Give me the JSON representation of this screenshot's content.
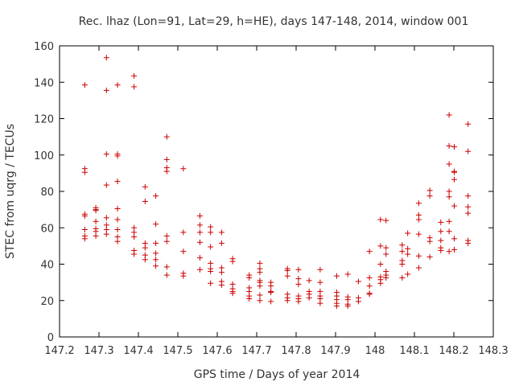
{
  "chart_data": {
    "type": "scatter",
    "title": "Rec. lhaz (Lon=91, Lat=29, h=HE), days 147-148, 2014, window 001",
    "xlabel": "GPS time / Days of year 2014",
    "ylabel": "STEC from uqrg / TECUs",
    "xlim": [
      147.2,
      148.3
    ],
    "ylim": [
      0,
      160
    ],
    "xticks": [
      147.2,
      147.3,
      147.4,
      147.5,
      147.6,
      147.7,
      147.8,
      147.9,
      148.0,
      148.1,
      148.2,
      148.3
    ],
    "xtick_labels": [
      "147.2",
      "147.3",
      "147.4",
      "147.5",
      "147.6",
      "147.7",
      "147.8",
      "147.9",
      "148",
      "148.1",
      "148.2",
      "148.3"
    ],
    "yticks": [
      0,
      20,
      40,
      60,
      80,
      100,
      120,
      140,
      160
    ],
    "ytick_labels": [
      "0",
      "20",
      "40",
      "60",
      "80",
      "100",
      "120",
      "140",
      "160"
    ],
    "grid": false,
    "legend": "none",
    "marker": "+",
    "color": "#cc0000",
    "points": [
      [
        147.264,
        138.5
      ],
      [
        147.264,
        92.5
      ],
      [
        147.264,
        90.5
      ],
      [
        147.264,
        67.5
      ],
      [
        147.264,
        66.5
      ],
      [
        147.264,
        59
      ],
      [
        147.264,
        55.5
      ],
      [
        147.264,
        54
      ],
      [
        147.292,
        71
      ],
      [
        147.292,
        70
      ],
      [
        147.292,
        69.5
      ],
      [
        147.292,
        63.5
      ],
      [
        147.292,
        59.5
      ],
      [
        147.292,
        58
      ],
      [
        147.292,
        55.5
      ],
      [
        147.319,
        153.5
      ],
      [
        147.319,
        135.5
      ],
      [
        147.319,
        100.5
      ],
      [
        147.319,
        83.5
      ],
      [
        147.319,
        65.5
      ],
      [
        147.319,
        61.5
      ],
      [
        147.319,
        59
      ],
      [
        147.319,
        56.5
      ],
      [
        147.347,
        138.5
      ],
      [
        147.347,
        100.5
      ],
      [
        147.347,
        99.5
      ],
      [
        147.347,
        85.5
      ],
      [
        147.347,
        70.5
      ],
      [
        147.347,
        64.5
      ],
      [
        147.347,
        59
      ],
      [
        147.347,
        55
      ],
      [
        147.347,
        52.5
      ],
      [
        147.389,
        143.5
      ],
      [
        147.389,
        137.5
      ],
      [
        147.389,
        60
      ],
      [
        147.389,
        57.5
      ],
      [
        147.389,
        55
      ],
      [
        147.389,
        47.5
      ],
      [
        147.389,
        45.5
      ],
      [
        147.417,
        82.5
      ],
      [
        147.417,
        74.5
      ],
      [
        147.417,
        51.5
      ],
      [
        147.417,
        49
      ],
      [
        147.417,
        45
      ],
      [
        147.417,
        42.5
      ],
      [
        147.444,
        77.5
      ],
      [
        147.444,
        62
      ],
      [
        147.444,
        51.5
      ],
      [
        147.444,
        46
      ],
      [
        147.444,
        42.5
      ],
      [
        147.444,
        39
      ],
      [
        147.472,
        110
      ],
      [
        147.472,
        97.5
      ],
      [
        147.472,
        93
      ],
      [
        147.472,
        91
      ],
      [
        147.472,
        55.5
      ],
      [
        147.472,
        52.5
      ],
      [
        147.472,
        38.5
      ],
      [
        147.472,
        34
      ],
      [
        147.514,
        92.5
      ],
      [
        147.514,
        57.5
      ],
      [
        147.514,
        47
      ],
      [
        147.514,
        35
      ],
      [
        147.514,
        33.5
      ],
      [
        147.556,
        66.5
      ],
      [
        147.556,
        61.5
      ],
      [
        147.556,
        57.5
      ],
      [
        147.556,
        52
      ],
      [
        147.556,
        43.5
      ],
      [
        147.556,
        37
      ],
      [
        147.583,
        60.5
      ],
      [
        147.583,
        57.5
      ],
      [
        147.583,
        49.5
      ],
      [
        147.583,
        40.5
      ],
      [
        147.583,
        37.5
      ],
      [
        147.583,
        36
      ],
      [
        147.583,
        29.5
      ],
      [
        147.611,
        57.5
      ],
      [
        147.611,
        51.5
      ],
      [
        147.611,
        38
      ],
      [
        147.611,
        35.5
      ],
      [
        147.611,
        30.5
      ],
      [
        147.611,
        28.5
      ],
      [
        147.639,
        43
      ],
      [
        147.639,
        41.5
      ],
      [
        147.639,
        29
      ],
      [
        147.639,
        26.5
      ],
      [
        147.639,
        25
      ],
      [
        147.639,
        24
      ],
      [
        147.681,
        34
      ],
      [
        147.681,
        32.5
      ],
      [
        147.681,
        27
      ],
      [
        147.681,
        25
      ],
      [
        147.681,
        22.5
      ],
      [
        147.681,
        21
      ],
      [
        147.708,
        40.5
      ],
      [
        147.708,
        37.5
      ],
      [
        147.708,
        35.5
      ],
      [
        147.708,
        31
      ],
      [
        147.708,
        30
      ],
      [
        147.708,
        28
      ],
      [
        147.708,
        23
      ],
      [
        147.708,
        20
      ],
      [
        147.736,
        30
      ],
      [
        147.736,
        28
      ],
      [
        147.736,
        25
      ],
      [
        147.736,
        24.5
      ],
      [
        147.736,
        19.5
      ],
      [
        147.778,
        37.5
      ],
      [
        147.778,
        36.5
      ],
      [
        147.778,
        33.5
      ],
      [
        147.778,
        23.5
      ],
      [
        147.778,
        21.5
      ],
      [
        147.778,
        20
      ],
      [
        147.806,
        37
      ],
      [
        147.806,
        32
      ],
      [
        147.806,
        29
      ],
      [
        147.806,
        22.5
      ],
      [
        147.806,
        21
      ],
      [
        147.806,
        19.5
      ],
      [
        147.833,
        31
      ],
      [
        147.833,
        25
      ],
      [
        147.833,
        23.5
      ],
      [
        147.833,
        21.5
      ],
      [
        147.861,
        37
      ],
      [
        147.861,
        30
      ],
      [
        147.861,
        25
      ],
      [
        147.861,
        22.5
      ],
      [
        147.861,
        21
      ],
      [
        147.861,
        18.5
      ],
      [
        147.903,
        33.5
      ],
      [
        147.903,
        24.5
      ],
      [
        147.903,
        22.5
      ],
      [
        147.903,
        20.5
      ],
      [
        147.903,
        18.5
      ],
      [
        147.903,
        17
      ],
      [
        147.931,
        34.5
      ],
      [
        147.931,
        22
      ],
      [
        147.931,
        20.5
      ],
      [
        147.931,
        18
      ],
      [
        147.931,
        17
      ],
      [
        147.958,
        30.5
      ],
      [
        147.958,
        21.5
      ],
      [
        147.958,
        19.5
      ],
      [
        147.986,
        47
      ],
      [
        147.986,
        32.5
      ],
      [
        147.986,
        28
      ],
      [
        147.986,
        24
      ],
      [
        147.986,
        23.5
      ],
      [
        148.014,
        64.5
      ],
      [
        148.014,
        50
      ],
      [
        148.014,
        40
      ],
      [
        148.014,
        33
      ],
      [
        148.014,
        31.5
      ],
      [
        148.014,
        29.5
      ],
      [
        148.028,
        64
      ],
      [
        148.028,
        49
      ],
      [
        148.028,
        45.5
      ],
      [
        148.028,
        36
      ],
      [
        148.028,
        34
      ],
      [
        148.028,
        32.5
      ],
      [
        148.069,
        50.5
      ],
      [
        148.069,
        47
      ],
      [
        148.069,
        42
      ],
      [
        148.069,
        40
      ],
      [
        148.069,
        32.5
      ],
      [
        148.083,
        57
      ],
      [
        148.083,
        48.5
      ],
      [
        148.083,
        45.5
      ],
      [
        148.083,
        34.5
      ],
      [
        148.111,
        73.5
      ],
      [
        148.111,
        67
      ],
      [
        148.111,
        64.5
      ],
      [
        148.111,
        56.5
      ],
      [
        148.111,
        44.5
      ],
      [
        148.111,
        38
      ],
      [
        148.139,
        80.5
      ],
      [
        148.139,
        77.5
      ],
      [
        148.139,
        54.5
      ],
      [
        148.139,
        52.5
      ],
      [
        148.139,
        44
      ],
      [
        148.167,
        63
      ],
      [
        148.167,
        58
      ],
      [
        148.167,
        53
      ],
      [
        148.167,
        49
      ],
      [
        148.167,
        47.5
      ],
      [
        148.188,
        122
      ],
      [
        148.188,
        105
      ],
      [
        148.188,
        95
      ],
      [
        148.188,
        80
      ],
      [
        148.188,
        77
      ],
      [
        148.188,
        63.5
      ],
      [
        148.188,
        58
      ],
      [
        148.188,
        47
      ],
      [
        148.201,
        104.5
      ],
      [
        148.201,
        91
      ],
      [
        148.201,
        90.5
      ],
      [
        148.201,
        86.5
      ],
      [
        148.201,
        72
      ],
      [
        148.201,
        54
      ],
      [
        148.201,
        48
      ],
      [
        148.236,
        117
      ],
      [
        148.236,
        102
      ],
      [
        148.236,
        77.5
      ],
      [
        148.236,
        71.5
      ],
      [
        148.236,
        68
      ],
      [
        148.236,
        53
      ],
      [
        148.236,
        51.5
      ]
    ]
  }
}
